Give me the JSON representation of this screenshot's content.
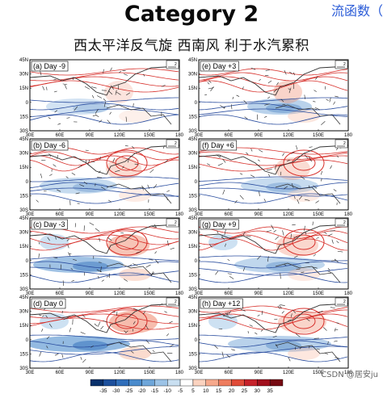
{
  "header": {
    "title": "Category 2",
    "corner_text": "流函数（",
    "subtitle": "西太平洋反气旋 西南风 利于水汽累积"
  },
  "axes": {
    "lat_ticks": [
      "45N",
      "30N",
      "15N",
      "0",
      "15S",
      "30S"
    ],
    "lon_ticks": [
      "30E",
      "60E",
      "90E",
      "120E",
      "150E",
      "180"
    ]
  },
  "panels": [
    {
      "label": "(a) Day -9"
    },
    {
      "label": "(e) Day +3"
    },
    {
      "label": "(b) Day -6"
    },
    {
      "label": "(f) Day +6"
    },
    {
      "label": "(c) Day -3"
    },
    {
      "label": "(g) Day +9"
    },
    {
      "label": "(d) Day 0"
    },
    {
      "label": "(h) Day +12"
    }
  ],
  "vector_ref_label": "2",
  "colorbar": {
    "ticks": [
      "-35",
      "-30",
      "-25",
      "-20",
      "-15",
      "-10",
      "-5",
      "5",
      "10",
      "15",
      "20",
      "25",
      "30",
      "35"
    ],
    "colors": [
      "#08306b",
      "#1c4f9c",
      "#2f6eba",
      "#4a8bcc",
      "#6ea6d9",
      "#9cc3e6",
      "#c9dff1",
      "#ffffff",
      "#fbd3c0",
      "#f6a98c",
      "#ee7c5e",
      "#e04b38",
      "#c6222a",
      "#a10f1c",
      "#760a12"
    ]
  },
  "watermark": "CSDN @居安ju"
}
